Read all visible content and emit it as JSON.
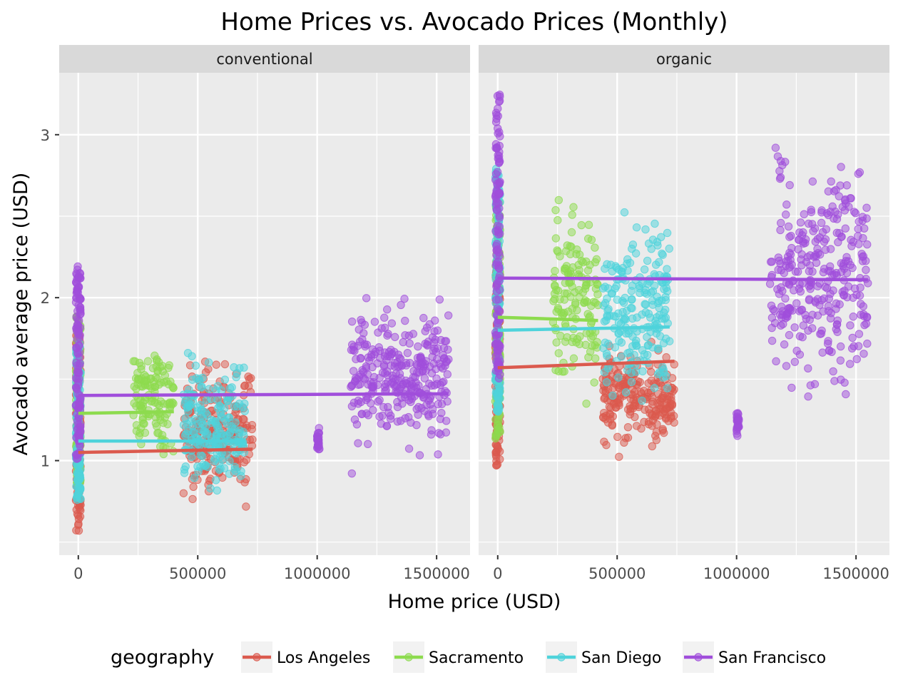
{
  "chart_data": {
    "type": "scatter",
    "title": "Home Prices vs. Avocado Prices (Monthly)",
    "xlabel": "Home price (USD)",
    "ylabel": "Avocado average price (USD)",
    "xlim": [
      -80000,
      1640000
    ],
    "ylim": [
      0.42,
      3.38
    ],
    "x_ticks": [
      0,
      500000,
      1000000,
      1500000
    ],
    "x_tick_labels": [
      "0",
      "500000",
      "1000000",
      "1500000"
    ],
    "y_ticks": [
      1,
      2,
      3
    ],
    "y_tick_labels": [
      "1",
      "2",
      "3"
    ],
    "grid": true,
    "legend": {
      "title": "geography",
      "position": "bottom",
      "items": [
        {
          "name": "Los Angeles",
          "color": "#db5a4e"
        },
        {
          "name": "Sacramento",
          "color": "#8ddb4e"
        },
        {
          "name": "San Diego",
          "color": "#4ed3db"
        },
        {
          "name": "San Francisco",
          "color": "#a04edb"
        }
      ]
    },
    "panels": [
      {
        "label": "conventional",
        "series": [
          {
            "name": "Los Angeles",
            "zero_price_range": [
              0.54,
              1.8
            ],
            "clusters": [
              {
                "x": [
                  440000,
                  730000
                ],
                "y": [
                  0.55,
                  1.78
                ]
              }
            ],
            "trend": {
              "x": [
                0,
                730000
              ],
              "y": [
                1.05,
                1.07
              ]
            }
          },
          {
            "name": "Sacramento",
            "zero_price_range": [
              0.85,
              1.9
            ],
            "clusters": [
              {
                "x": [
                  230000,
                  400000
                ],
                "y": [
                  0.86,
                  1.89
                ]
              }
            ],
            "trend": {
              "x": [
                0,
                400000
              ],
              "y": [
                1.29,
                1.3
              ]
            }
          },
          {
            "name": "San Diego",
            "zero_price_range": [
              0.75,
              1.75
            ],
            "clusters": [
              {
                "x": [
                  440000,
                  700000
                ],
                "y": [
                  0.6,
                  1.83
                ]
              }
            ],
            "trend": {
              "x": [
                0,
                700000
              ],
              "y": [
                1.12,
                1.12
              ]
            }
          },
          {
            "name": "San Francisco",
            "zero_price_range": [
              1.0,
              2.2
            ],
            "clusters": [
              {
                "x": [
                  1000000,
                  1010000
                ],
                "y": [
                  1.0,
                  1.25
                ]
              },
              {
                "x": [
                  1140000,
                  1550000
                ],
                "y": [
                  0.84,
                  2.2
                ]
              }
            ],
            "trend": {
              "x": [
                0,
                1550000
              ],
              "y": [
                1.4,
                1.41
              ]
            }
          }
        ]
      },
      {
        "label": "organic",
        "series": [
          {
            "name": "Los Angeles",
            "zero_price_range": [
              0.97,
              2.2
            ],
            "clusters": [
              {
                "x": [
                  440000,
                  740000
                ],
                "y": [
                  0.96,
                  1.8
                ]
              }
            ],
            "trend": {
              "x": [
                0,
                740000
              ],
              "y": [
                1.57,
                1.61
              ]
            }
          },
          {
            "name": "Sacramento",
            "zero_price_range": [
              1.1,
              2.6
            ],
            "clusters": [
              {
                "x": [
                  230000,
                  420000
                ],
                "y": [
                  1.13,
                  2.82
                ]
              }
            ],
            "trend": {
              "x": [
                0,
                420000
              ],
              "y": [
                1.88,
                1.86
              ]
            }
          },
          {
            "name": "San Diego",
            "zero_price_range": [
              1.3,
              2.8
            ],
            "clusters": [
              {
                "x": [
                  440000,
                  720000
                ],
                "y": [
                  1.05,
                  2.78
                ]
              }
            ],
            "trend": {
              "x": [
                0,
                720000
              ],
              "y": [
                1.8,
                1.82
              ]
            }
          },
          {
            "name": "San Francisco",
            "zero_price_range": [
              1.5,
              3.25
            ],
            "clusters": [
              {
                "x": [
                  1000000,
                  1010000
                ],
                "y": [
                  1.1,
                  1.35
                ]
              },
              {
                "x": [
                  1140000,
                  1550000
                ],
                "y": [
                  1.06,
                  3.25
                ]
              }
            ],
            "trend": {
              "x": [
                0,
                1550000
              ],
              "y": [
                2.12,
                2.11
              ]
            }
          }
        ]
      }
    ]
  }
}
